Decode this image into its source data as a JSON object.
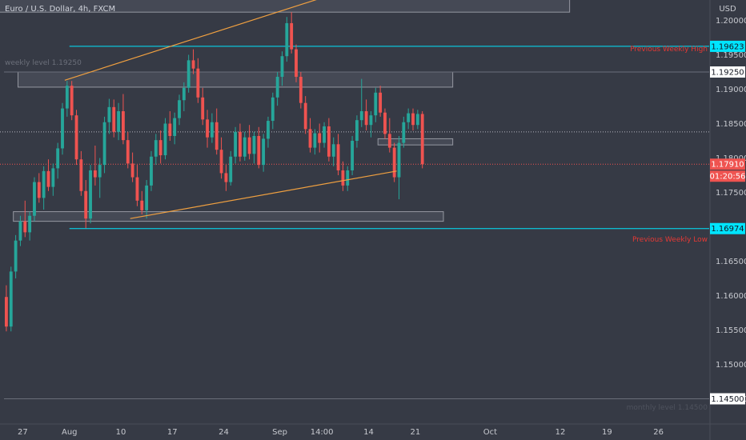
{
  "header": {
    "title": "Euro / U.S. Dollar, 4h, FXCM"
  },
  "chart_data": {
    "type": "candlestick",
    "currency": "USD",
    "ylim": [
      1.1425,
      1.2025
    ],
    "y_ticks": [
      {
        "label": "1.20000",
        "value": 1.2
      },
      {
        "label": "1.19500",
        "value": 1.195
      },
      {
        "label": "1.19000",
        "value": 1.19
      },
      {
        "label": "1.18500",
        "value": 1.185
      },
      {
        "label": "1.18000",
        "value": 1.18
      },
      {
        "label": "1.17500",
        "value": 1.175
      },
      {
        "label": "1.16500",
        "value": 1.165
      },
      {
        "label": "1.16000",
        "value": 1.16
      },
      {
        "label": "1.15500",
        "value": 1.155
      },
      {
        "label": "1.15000",
        "value": 1.15
      },
      {
        "label": "1.14500",
        "value": 1.145
      }
    ],
    "x_ticks": [
      {
        "label": "27",
        "bar": 4
      },
      {
        "label": "Aug",
        "bar": 14
      },
      {
        "label": "10",
        "bar": 25
      },
      {
        "label": "17",
        "bar": 36
      },
      {
        "label": "24",
        "bar": 47
      },
      {
        "label": "Sep",
        "bar": 59
      },
      {
        "label": "14:00",
        "bar": 68
      },
      {
        "label": "14",
        "bar": 78
      },
      {
        "label": "21",
        "bar": 88
      },
      {
        "label": "Oct",
        "bar": 104
      },
      {
        "label": "12",
        "bar": 119
      },
      {
        "label": "19",
        "bar": 129
      },
      {
        "label": "26",
        "bar": 140
      }
    ],
    "price_badges": [
      {
        "label": "1.19623",
        "value": 1.19623,
        "color": "#00e5ff"
      },
      {
        "label": "1.19250",
        "value": 1.1925,
        "color": "#ffffff"
      },
      {
        "label": "1.17910",
        "value": 1.1791,
        "color": "#ef5350"
      },
      {
        "label": "1.16974",
        "value": 1.16974,
        "color": "#00e5ff"
      },
      {
        "label": "1.14500",
        "value": 1.145,
        "color": "#ffffff"
      }
    ],
    "countdown": "01:20:56",
    "horizontal_lines": [
      {
        "value": 1.19623,
        "color": "#00e5ff",
        "from_bar": 14,
        "label": "Previous Weekly High"
      },
      {
        "value": 1.16974,
        "color": "#00e5ff",
        "from_bar": 14,
        "label": "Previous Weekly Low"
      },
      {
        "value": 1.1925,
        "color": "#6b6f7a",
        "from_bar": 0,
        "label": "weekly level 1.19250"
      },
      {
        "value": 1.145,
        "color": "#6b6f7a",
        "from_bar": 0,
        "label": "monthly level 1.14500"
      }
    ],
    "dotted_lines": [
      {
        "value": 1.1838,
        "color": "#b2b5be"
      },
      {
        "value": 1.1791,
        "color": "#ef5350"
      }
    ],
    "zones": [
      {
        "from_bar": -1,
        "to_bar": 121,
        "top": 1.2055,
        "bottom": 1.2012
      },
      {
        "from_bar": 3,
        "to_bar": 96,
        "top": 1.1925,
        "bottom": 1.1903
      },
      {
        "from_bar": 80,
        "to_bar": 96,
        "top": 1.1828,
        "bottom": 1.1819
      },
      {
        "from_bar": 2,
        "to_bar": 94,
        "top": 1.1722,
        "bottom": 1.1708
      }
    ],
    "trendlines": [
      {
        "from": [
          13,
          1.1913
        ],
        "to": [
          75,
          1.2048
        ],
        "color": "#f0a040"
      },
      {
        "from": [
          27,
          1.1712
        ],
        "to": [
          84,
          1.1781
        ],
        "color": "#f0a040"
      }
    ],
    "candles": [
      [
        1.1598,
        1.1615,
        1.1548,
        1.1555
      ],
      [
        1.1555,
        1.1642,
        1.1548,
        1.1635
      ],
      [
        1.1635,
        1.1688,
        1.1625,
        1.168
      ],
      [
        1.168,
        1.1716,
        1.1672,
        1.1708
      ],
      [
        1.1708,
        1.1738,
        1.1685,
        1.1692
      ],
      [
        1.1692,
        1.1722,
        1.168,
        1.1716
      ],
      [
        1.1716,
        1.1772,
        1.1708,
        1.1765
      ],
      [
        1.1765,
        1.1778,
        1.1735,
        1.1742
      ],
      [
        1.1742,
        1.1788,
        1.1725,
        1.1781
      ],
      [
        1.1781,
        1.1798,
        1.1752,
        1.1758
      ],
      [
        1.1758,
        1.1792,
        1.1745,
        1.1785
      ],
      [
        1.1785,
        1.1822,
        1.177,
        1.1814
      ],
      [
        1.1814,
        1.188,
        1.1805,
        1.1872
      ],
      [
        1.1872,
        1.1912,
        1.186,
        1.1905
      ],
      [
        1.1905,
        1.1912,
        1.1855,
        1.1862
      ],
      [
        1.1862,
        1.187,
        1.179,
        1.1798
      ],
      [
        1.1798,
        1.181,
        1.1745,
        1.1752
      ],
      [
        1.1752,
        1.1768,
        1.1698,
        1.1712
      ],
      [
        1.1712,
        1.179,
        1.1705,
        1.1782
      ],
      [
        1.1782,
        1.1818,
        1.176,
        1.1772
      ],
      [
        1.1772,
        1.18,
        1.1742,
        1.179
      ],
      [
        1.179,
        1.186,
        1.1778,
        1.1852
      ],
      [
        1.1852,
        1.1886,
        1.1835,
        1.1874
      ],
      [
        1.1874,
        1.1885,
        1.183,
        1.1838
      ],
      [
        1.1838,
        1.188,
        1.1826,
        1.1868
      ],
      [
        1.1868,
        1.1893,
        1.182,
        1.1826
      ],
      [
        1.1826,
        1.1838,
        1.1785,
        1.1792
      ],
      [
        1.1792,
        1.1808,
        1.1765,
        1.1772
      ],
      [
        1.1772,
        1.179,
        1.173,
        1.1738
      ],
      [
        1.1738,
        1.1752,
        1.1718,
        1.1724
      ],
      [
        1.1724,
        1.1768,
        1.1712,
        1.176
      ],
      [
        1.176,
        1.181,
        1.1752,
        1.1802
      ],
      [
        1.1802,
        1.1835,
        1.179,
        1.1826
      ],
      [
        1.1826,
        1.184,
        1.1792,
        1.1804
      ],
      [
        1.1804,
        1.1858,
        1.1798,
        1.185
      ],
      [
        1.185,
        1.1868,
        1.1825,
        1.1832
      ],
      [
        1.1832,
        1.1866,
        1.182,
        1.1858
      ],
      [
        1.1858,
        1.1892,
        1.1848,
        1.1884
      ],
      [
        1.1884,
        1.191,
        1.1868,
        1.1902
      ],
      [
        1.1902,
        1.195,
        1.1895,
        1.1942
      ],
      [
        1.1942,
        1.1958,
        1.1922,
        1.193
      ],
      [
        1.193,
        1.1945,
        1.188,
        1.1888
      ],
      [
        1.1888,
        1.1902,
        1.1848,
        1.1856
      ],
      [
        1.1856,
        1.187,
        1.1815,
        1.183
      ],
      [
        1.183,
        1.1865,
        1.1822,
        1.1852
      ],
      [
        1.1852,
        1.1872,
        1.1805,
        1.1812
      ],
      [
        1.1812,
        1.183,
        1.177,
        1.1778
      ],
      [
        1.1778,
        1.179,
        1.1752,
        1.1765
      ],
      [
        1.1765,
        1.181,
        1.176,
        1.1802
      ],
      [
        1.1802,
        1.1845,
        1.1792,
        1.1838
      ],
      [
        1.1838,
        1.185,
        1.1795,
        1.1802
      ],
      [
        1.1802,
        1.1838,
        1.1796,
        1.183
      ],
      [
        1.183,
        1.1848,
        1.1798,
        1.1806
      ],
      [
        1.1806,
        1.1838,
        1.1792,
        1.1832
      ],
      [
        1.1832,
        1.1845,
        1.1785,
        1.179
      ],
      [
        1.179,
        1.1835,
        1.178,
        1.1828
      ],
      [
        1.1828,
        1.186,
        1.1815,
        1.1854
      ],
      [
        1.1854,
        1.1895,
        1.1842,
        1.1888
      ],
      [
        1.1888,
        1.1925,
        1.1876,
        1.1918
      ],
      [
        1.1918,
        1.1955,
        1.1905,
        1.1948
      ],
      [
        1.1948,
        1.2005,
        1.194,
        1.1996
      ],
      [
        1.1996,
        1.2012,
        1.1952,
        1.1958
      ],
      [
        1.1958,
        1.1965,
        1.191,
        1.1918
      ],
      [
        1.1918,
        1.1925,
        1.1872,
        1.188
      ],
      [
        1.188,
        1.189,
        1.1835,
        1.1842
      ],
      [
        1.1842,
        1.1858,
        1.1808,
        1.1815
      ],
      [
        1.1815,
        1.1842,
        1.1805,
        1.1836
      ],
      [
        1.1836,
        1.185,
        1.1808,
        1.1822
      ],
      [
        1.1822,
        1.1852,
        1.1815,
        1.1846
      ],
      [
        1.1846,
        1.1858,
        1.1795,
        1.1802
      ],
      [
        1.1802,
        1.183,
        1.1788,
        1.182
      ],
      [
        1.182,
        1.1835,
        1.1775,
        1.1782
      ],
      [
        1.1782,
        1.1795,
        1.1752,
        1.176
      ],
      [
        1.176,
        1.1788,
        1.1752,
        1.1782
      ],
      [
        1.1782,
        1.1832,
        1.1775,
        1.1825
      ],
      [
        1.1825,
        1.1862,
        1.1815,
        1.1855
      ],
      [
        1.1855,
        1.1915,
        1.1845,
        1.1868
      ],
      [
        1.1868,
        1.1885,
        1.184,
        1.1848
      ],
      [
        1.1848,
        1.1868,
        1.183,
        1.1862
      ],
      [
        1.1862,
        1.1902,
        1.1852,
        1.1895
      ],
      [
        1.1895,
        1.1905,
        1.186,
        1.1866
      ],
      [
        1.1866,
        1.1872,
        1.1828,
        1.1835
      ],
      [
        1.1835,
        1.1858,
        1.1808,
        1.1815
      ],
      [
        1.1815,
        1.1822,
        1.1765,
        1.1772
      ],
      [
        1.1772,
        1.1832,
        1.174,
        1.1822
      ],
      [
        1.1822,
        1.186,
        1.1815,
        1.1852
      ],
      [
        1.1852,
        1.1872,
        1.1842,
        1.1865
      ],
      [
        1.1865,
        1.1872,
        1.184,
        1.1848
      ],
      [
        1.1848,
        1.187,
        1.1842,
        1.1864
      ],
      [
        1.1864,
        1.1868,
        1.1785,
        1.1791
      ]
    ]
  },
  "annotations": {
    "weekly_high_label": "Previous Weekly High",
    "weekly_low_label": "Previous Weekly Low",
    "weekly_level_label": "weekly level 1.19250",
    "monthly_level_label": "monthly level 1.14500"
  },
  "colors": {
    "background": "#363a45",
    "bull": "#26a69a",
    "bear": "#ef5350",
    "axis_text": "#c7c9cf",
    "accent_line": "#00e5ff",
    "trend": "#f0a040"
  }
}
